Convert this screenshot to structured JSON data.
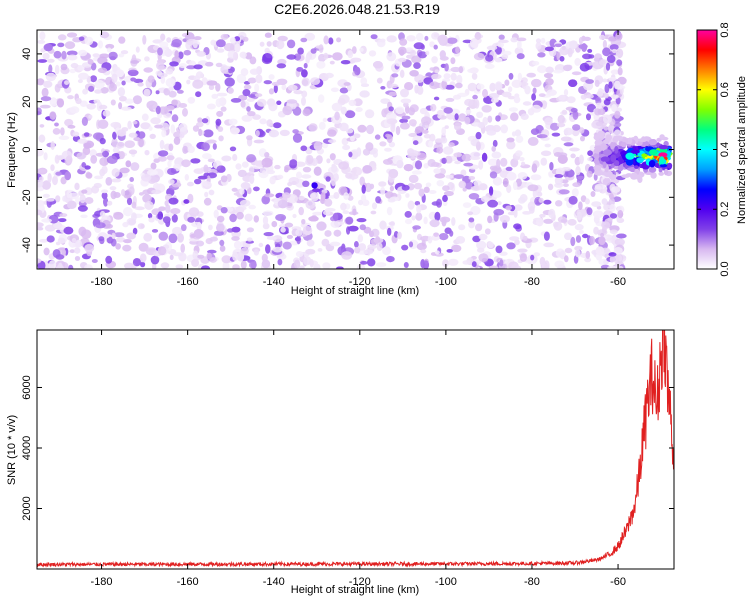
{
  "title": "C2E6.2026.048.21.53.R19",
  "chart_data": [
    {
      "type": "heatmap",
      "xlabel": "Height of straight line (km)",
      "ylabel": "Frequency (Hz)",
      "xlim": [
        -195,
        -47
      ],
      "ylim": [
        -50,
        50
      ],
      "xticks": [
        -180,
        -160,
        -140,
        -120,
        -100,
        -80,
        -60
      ],
      "yticks": [
        -40,
        -20,
        0,
        20,
        40
      ],
      "xtick_labels": [
        "-180",
        "-160",
        "-140",
        "-120",
        "-100",
        "-80",
        "-60"
      ],
      "ytick_labels": [
        "-40",
        "-20",
        "0",
        "20",
        "40"
      ],
      "colorbar": {
        "label": "Normalized spectral amplitude",
        "range": [
          0,
          0.8
        ],
        "ticks": [
          0,
          0.2,
          0.4,
          0.6,
          0.8
        ],
        "tick_labels": [
          "0.0",
          "0.2",
          "0.4",
          "0.6",
          "0.8"
        ],
        "colors": [
          "#ffffff",
          "#d8b8f0",
          "#8040e8",
          "#5000f0",
          "#0000ff",
          "#00a0ff",
          "#00ffff",
          "#00ff80",
          "#80ff00",
          "#ffff00",
          "#ff8000",
          "#ff0000",
          "#ff00a0"
        ]
      },
      "noise": {
        "x_range": [
          -195,
          -65
        ],
        "y_range": [
          -50,
          48
        ],
        "typical_amplitude": 0.05
      },
      "signal": {
        "x_range": [
          -65,
          -48
        ],
        "frequency_hz": -3,
        "peak_amplitude": 0.75,
        "peak_x": -50
      }
    },
    {
      "type": "line",
      "xlabel": "Height of straight line (km)",
      "ylabel": "SNR (10 * v/v)",
      "xlim": [
        -195,
        -47
      ],
      "ylim": [
        0,
        7900
      ],
      "xticks": [
        -180,
        -160,
        -140,
        -120,
        -100,
        -80,
        -60
      ],
      "yticks": [
        2000,
        4000,
        6000
      ],
      "xtick_labels": [
        "-180",
        "-160",
        "-140",
        "-120",
        "-100",
        "-80",
        "-60"
      ],
      "ytick_labels": [
        "2000",
        "4000",
        "6000"
      ],
      "series": [
        {
          "color": "#e02020",
          "points": [
            [
              -195,
              150
            ],
            [
              -150,
              160
            ],
            [
              -100,
              170
            ],
            [
              -80,
              180
            ],
            [
              -70,
              200
            ],
            [
              -65,
              300
            ],
            [
              -62,
              450
            ],
            [
              -60,
              700
            ],
            [
              -58,
              1200
            ],
            [
              -56,
              2000
            ],
            [
              -55,
              3000
            ],
            [
              -54,
              4200
            ],
            [
              -53,
              5300
            ],
            [
              -52,
              6100
            ],
            [
              -51,
              5000
            ],
            [
              -50,
              6600
            ],
            [
              -49.3,
              7750
            ],
            [
              -48.5,
              5600
            ],
            [
              -47.5,
              4400
            ],
            [
              -47,
              3000
            ]
          ]
        }
      ]
    }
  ]
}
